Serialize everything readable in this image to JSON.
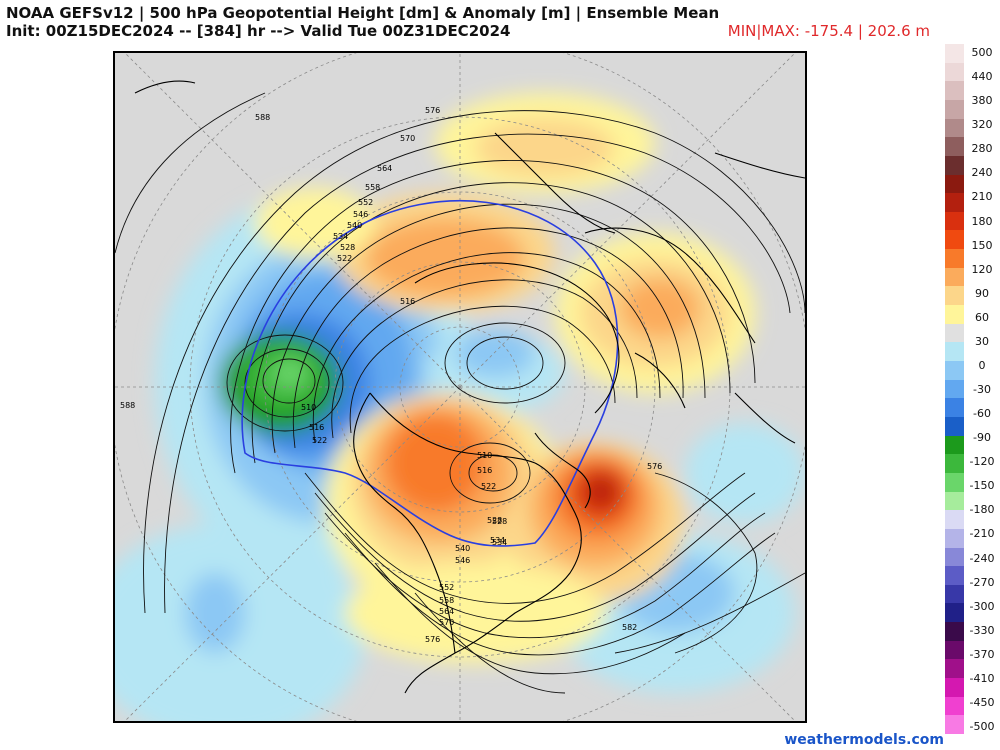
{
  "header": {
    "title_line1": "NOAA GEFSv12 | 500 hPa Geopotential Height [dm] & Anomaly [m] | Ensemble Mean",
    "title_line2": "Init: 00Z15DEC2024 -- [384] hr --> Valid Tue 00Z31DEC2024",
    "minmax": "MIN|MAX: -175.4 | 202.6 m"
  },
  "credit": "weathermodels.com",
  "colorbar": {
    "labels": [
      "500",
      "440",
      "380",
      "320",
      "280",
      "240",
      "210",
      "180",
      "150",
      "120",
      "90",
      "60",
      "30",
      "0",
      "-30",
      "-60",
      "-90",
      "-120",
      "-150",
      "-180",
      "-210",
      "-240",
      "-270",
      "-300",
      "-330",
      "-370",
      "-410",
      "-450",
      "-500"
    ],
    "colors": [
      "#f4e6e6",
      "#ecd8d8",
      "#dbbfbf",
      "#c7a6a6",
      "#b08a8a",
      "#8e5e5e",
      "#6b2e2e",
      "#8b1a10",
      "#b3200f",
      "#d9300f",
      "#f04a10",
      "#f87a2a",
      "#fbab5c",
      "#fcd68a",
      "#fff59a",
      "#e0e0e0",
      "#b5e6f4",
      "#8cc8f4",
      "#62a8f0",
      "#3b82e4",
      "#1a5fc8",
      "#1c9a1c",
      "#3cb83c",
      "#6ad66a",
      "#a6ec9c",
      "#dadaf4",
      "#b4b4e8",
      "#8888d8",
      "#5c5cc6",
      "#3838a8",
      "#202088",
      "#3a0a4a",
      "#6a0a6a",
      "#a0108a",
      "#d418b0",
      "#f040d0",
      "#f87ae4"
    ]
  },
  "map": {
    "contour_labels": [
      "588",
      "576",
      "570",
      "564",
      "558",
      "552",
      "546",
      "540",
      "534",
      "528",
      "522",
      "516",
      "510",
      "516",
      "522",
      "528",
      "534",
      "540",
      "546",
      "552",
      "558",
      "564",
      "570",
      "576",
      "576",
      "582",
      "588",
      "534",
      "528",
      "522",
      "516",
      "510"
    ]
  }
}
